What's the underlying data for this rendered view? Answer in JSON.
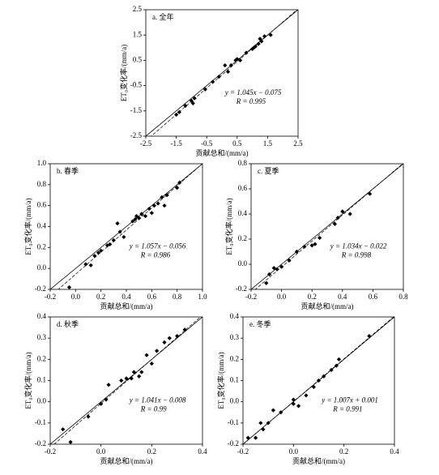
{
  "chart_data": [
    {
      "type": "scatter",
      "title": "a. 全年",
      "x_label": "贡献总和/(mm/a)",
      "y_label": "ET₀变化率/(mm/a)",
      "equation": "y = 1.045x − 0.075",
      "r_text": "R = 0.995",
      "fit": {
        "slope": 1.045,
        "intercept": -0.075
      },
      "xlim": [
        -2.5,
        2.5
      ],
      "ylim": [
        -2.5,
        2.5
      ],
      "xticks": [
        -2.5,
        -1.5,
        -0.5,
        0.5,
        1.5,
        2.5
      ],
      "yticks": [
        -2.5,
        -1.5,
        -0.5,
        0.5,
        1.5,
        2.5
      ],
      "color": "#000000",
      "x": [
        -1.5,
        -1.4,
        -1.2,
        -1.0,
        -0.95,
        -0.9,
        -0.55,
        -0.3,
        -0.1,
        0.1,
        0.2,
        0.3,
        0.45,
        0.5,
        0.6,
        0.8,
        1.0,
        1.05,
        1.1,
        1.2,
        1.25,
        1.3,
        1.4,
        1.6
      ],
      "y": [
        -1.65,
        -1.55,
        -1.3,
        -1.1,
        -1.2,
        -1.0,
        -0.65,
        -0.35,
        -0.15,
        0.3,
        0.05,
        0.3,
        0.5,
        0.55,
        0.5,
        0.8,
        0.95,
        1.0,
        1.05,
        1.15,
        1.35,
        1.25,
        1.45,
        1.5
      ]
    },
    {
      "type": "scatter",
      "title": "b. 春季",
      "x_label": "贡献总和/(mm/a)",
      "y_label": "ET₀变化率/(mm/a)",
      "equation": "y = 1.057x − 0.056",
      "r_text": "R = 0.986",
      "fit": {
        "slope": 1.057,
        "intercept": -0.056
      },
      "xlim": [
        -0.2,
        1.0
      ],
      "ylim": [
        -0.2,
        1.0
      ],
      "xticks": [
        -0.2,
        {
          "value": 0,
          "label": "0.0"
        },
        0.2,
        0.4,
        0.6,
        0.8,
        {
          "value": 1,
          "label": "1.0"
        }
      ],
      "yticks": [
        -0.2,
        {
          "value": 0,
          "label": "0.0"
        },
        0.2,
        0.4,
        0.6,
        0.8,
        {
          "value": 1,
          "label": "1.0"
        }
      ],
      "color": "#000000",
      "x": [
        -0.05,
        0.08,
        0.12,
        0.15,
        0.18,
        0.2,
        0.25,
        0.27,
        0.3,
        0.33,
        0.35,
        0.38,
        0.45,
        0.47,
        0.48,
        0.5,
        0.52,
        0.55,
        0.58,
        0.6,
        0.62,
        0.65,
        0.68,
        0.7,
        0.72,
        0.8,
        0.82
      ],
      "y": [
        -0.18,
        0.04,
        0.03,
        0.12,
        0.15,
        0.17,
        0.22,
        0.23,
        0.27,
        0.43,
        0.35,
        0.3,
        0.45,
        0.47,
        0.5,
        0.48,
        0.52,
        0.5,
        0.57,
        0.53,
        0.6,
        0.62,
        0.68,
        0.6,
        0.7,
        0.77,
        0.82
      ]
    },
    {
      "type": "scatter",
      "title": "c. 夏季",
      "x_label": "贡献总和/(mm/a)",
      "y_label": "ET₀变化率/(mm/a)",
      "equation": "y = 1.034x − 0.022",
      "r_text": "R = 0.998",
      "fit": {
        "slope": 1.034,
        "intercept": -0.022
      },
      "xlim": [
        -0.2,
        0.8
      ],
      "ylim": [
        -0.2,
        0.8
      ],
      "xticks": [
        -0.2,
        {
          "value": 0,
          "label": "0.0"
        },
        0.2,
        0.4,
        0.6,
        0.8
      ],
      "yticks": [
        -0.2,
        {
          "value": 0,
          "label": "0.0"
        },
        0.2,
        0.4,
        0.6,
        0.8
      ],
      "color": "#000000",
      "x": [
        -0.1,
        -0.08,
        -0.05,
        -0.03,
        0,
        0.05,
        0.1,
        0.15,
        0.2,
        0.22,
        0.25,
        0.35,
        0.37,
        0.4,
        0.45,
        0.58
      ],
      "y": [
        -0.15,
        -0.08,
        -0.03,
        -0.04,
        -0.02,
        0.03,
        0.1,
        0.14,
        0.15,
        0.16,
        0.21,
        0.32,
        0.37,
        0.42,
        0.4,
        0.56
      ]
    },
    {
      "type": "scatter",
      "title": "d. 秋季",
      "x_label": "贡献总和/(mm/a)",
      "y_label": "ET₀变化率/(mm/a)",
      "equation": "y = 1.041x − 0.008",
      "r_text": "R = 0.99",
      "fit": {
        "slope": 1.041,
        "intercept": -0.008
      },
      "xlim": [
        -0.2,
        0.4
      ],
      "ylim": [
        -0.2,
        0.4
      ],
      "xticks": [
        -0.2,
        {
          "value": 0,
          "label": "0.0"
        },
        0.2,
        0.4
      ],
      "yticks": [
        -0.2,
        -0.1,
        {
          "value": 0,
          "label": "0.0"
        },
        0.1,
        0.2,
        0.3,
        0.4
      ],
      "color": "#000000",
      "x": [
        -0.15,
        -0.12,
        -0.05,
        0,
        0.02,
        0.03,
        0.08,
        0.1,
        0.12,
        0.13,
        0.15,
        0.16,
        0.18,
        0.2,
        0.22,
        0.25,
        0.27,
        0.3,
        0.33
      ],
      "y": [
        -0.13,
        -0.19,
        -0.07,
        -0.01,
        0.01,
        0.08,
        0.1,
        0.11,
        0.11,
        0.14,
        0.12,
        0.14,
        0.22,
        0.18,
        0.24,
        0.28,
        0.3,
        0.31,
        0.34
      ]
    },
    {
      "type": "scatter",
      "title": "e. 冬季",
      "x_label": "贡献总和/(mm/a)",
      "y_label": "ET₀变化率/(mm/a)",
      "equation": "y = 1.007x + 0.001",
      "r_text": "R = 0.991",
      "fit": {
        "slope": 1.007,
        "intercept": 0.001
      },
      "xlim": [
        -0.2,
        0.4
      ],
      "ylim": [
        -0.2,
        0.4
      ],
      "xticks": [
        -0.2,
        {
          "value": 0,
          "label": "0.0"
        },
        0.2,
        0.4
      ],
      "yticks": [
        -0.2,
        -0.1,
        {
          "value": 0,
          "label": "0.0"
        },
        0.1,
        0.2,
        0.3,
        0.4
      ],
      "color": "#000000",
      "x": [
        -0.18,
        -0.15,
        -0.13,
        -0.12,
        -0.1,
        -0.08,
        -0.05,
        0,
        0,
        0.02,
        0.05,
        0.08,
        0.1,
        0.12,
        0.15,
        0.17,
        0.18,
        0.3
      ],
      "y": [
        -0.17,
        -0.17,
        -0.1,
        -0.13,
        -0.1,
        -0.04,
        -0.05,
        0.01,
        -0.01,
        -0.02,
        0.03,
        0.07,
        0.1,
        0.12,
        0.15,
        0.17,
        0.2,
        0.31
      ]
    }
  ]
}
